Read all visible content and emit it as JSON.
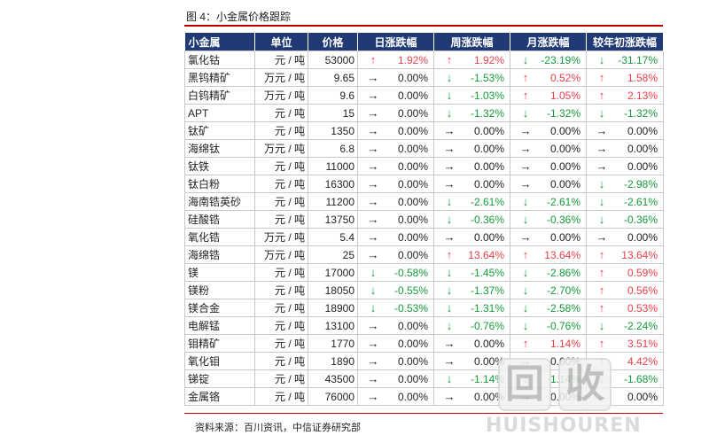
{
  "figure_title": "图 4：小金属价格跟踪",
  "columns": {
    "name": "小金属",
    "unit": "单位",
    "price": "价格",
    "day": "日涨跌幅",
    "week": "周涨跌幅",
    "month": "月涨跌幅",
    "ytd": "较年初涨跌幅"
  },
  "arrows": {
    "up": "↑",
    "down": "↓",
    "flat": "→"
  },
  "colors": {
    "header_bg": "#1f3a74",
    "up": "#e8414a",
    "down": "#159a3a",
    "rule": "#c00000"
  },
  "rows": [
    {
      "name": "氯化钴",
      "unit": "元 / 吨",
      "price": "53000",
      "day": {
        "dir": "up",
        "value": "1.92%"
      },
      "week": {
        "dir": "up",
        "value": "1.92%"
      },
      "month": {
        "dir": "down",
        "value": "-23.19%"
      },
      "ytd": {
        "dir": "down",
        "value": "-31.17%"
      }
    },
    {
      "name": "黑钨精矿",
      "unit": "万元 / 吨",
      "price": "9.65",
      "day": {
        "dir": "flat",
        "value": "0.00%"
      },
      "week": {
        "dir": "down",
        "value": "-1.53%"
      },
      "month": {
        "dir": "up",
        "value": "0.52%"
      },
      "ytd": {
        "dir": "up",
        "value": "1.58%"
      }
    },
    {
      "name": "白钨精矿",
      "unit": "万元 / 吨",
      "price": "9.6",
      "day": {
        "dir": "flat",
        "value": "0.00%"
      },
      "week": {
        "dir": "down",
        "value": "-1.03%"
      },
      "month": {
        "dir": "up",
        "value": "1.05%"
      },
      "ytd": {
        "dir": "up",
        "value": "2.13%"
      }
    },
    {
      "name": "APT",
      "unit": "元 / 吨",
      "price": "15",
      "day": {
        "dir": "flat",
        "value": "0.00%"
      },
      "week": {
        "dir": "down",
        "value": "-1.32%"
      },
      "month": {
        "dir": "down",
        "value": "-1.32%"
      },
      "ytd": {
        "dir": "down",
        "value": "-1.32%"
      }
    },
    {
      "name": "钛矿",
      "unit": "元 / 吨",
      "price": "1350",
      "day": {
        "dir": "flat",
        "value": "0.00%"
      },
      "week": {
        "dir": "flat",
        "value": "0.00%"
      },
      "month": {
        "dir": "flat",
        "value": "0.00%"
      },
      "ytd": {
        "dir": "flat",
        "value": "0.00%"
      }
    },
    {
      "name": "海绵钛",
      "unit": "万元 / 吨",
      "price": "6.8",
      "day": {
        "dir": "flat",
        "value": "0.00%"
      },
      "week": {
        "dir": "flat",
        "value": "0.00%"
      },
      "month": {
        "dir": "flat",
        "value": "0.00%"
      },
      "ytd": {
        "dir": "flat",
        "value": "0.00%"
      }
    },
    {
      "name": "钛铁",
      "unit": "元 / 吨",
      "price": "11000",
      "day": {
        "dir": "flat",
        "value": "0.00%"
      },
      "week": {
        "dir": "flat",
        "value": "0.00%"
      },
      "month": {
        "dir": "flat",
        "value": "0.00%"
      },
      "ytd": {
        "dir": "flat",
        "value": "0.00%"
      }
    },
    {
      "name": "钛白粉",
      "unit": "元 / 吨",
      "price": "16300",
      "day": {
        "dir": "flat",
        "value": "0.00%"
      },
      "week": {
        "dir": "flat",
        "value": "0.00%"
      },
      "month": {
        "dir": "flat",
        "value": "0.00%"
      },
      "ytd": {
        "dir": "down",
        "value": "-2.98%"
      }
    },
    {
      "name": "海南锆英砂",
      "unit": "元 / 吨",
      "price": "11200",
      "day": {
        "dir": "flat",
        "value": "0.00%"
      },
      "week": {
        "dir": "down",
        "value": "-2.61%"
      },
      "month": {
        "dir": "down",
        "value": "-2.61%"
      },
      "ytd": {
        "dir": "down",
        "value": "-2.61%"
      }
    },
    {
      "name": "硅酸锆",
      "unit": "元 / 吨",
      "price": "13750",
      "day": {
        "dir": "flat",
        "value": "0.00%"
      },
      "week": {
        "dir": "down",
        "value": "-0.36%"
      },
      "month": {
        "dir": "down",
        "value": "-0.36%"
      },
      "ytd": {
        "dir": "down",
        "value": "-0.36%"
      }
    },
    {
      "name": "氧化锆",
      "unit": "万元 / 吨",
      "price": "5.4",
      "day": {
        "dir": "flat",
        "value": "0.00%"
      },
      "week": {
        "dir": "flat",
        "value": "0.00%"
      },
      "month": {
        "dir": "flat",
        "value": "0.00%"
      },
      "ytd": {
        "dir": "flat",
        "value": "0.00%"
      }
    },
    {
      "name": "海绵锆",
      "unit": "万元 / 吨",
      "price": "25",
      "day": {
        "dir": "flat",
        "value": "0.00%"
      },
      "week": {
        "dir": "up",
        "value": "13.64%"
      },
      "month": {
        "dir": "up",
        "value": "13.64%"
      },
      "ytd": {
        "dir": "up",
        "value": "13.64%"
      }
    },
    {
      "name": "镁",
      "unit": "元 / 吨",
      "price": "17000",
      "day": {
        "dir": "down",
        "value": "-0.58%"
      },
      "week": {
        "dir": "down",
        "value": "-1.45%"
      },
      "month": {
        "dir": "down",
        "value": "-2.86%"
      },
      "ytd": {
        "dir": "up",
        "value": "0.59%"
      }
    },
    {
      "name": "镁粉",
      "unit": "元 / 吨",
      "price": "18050",
      "day": {
        "dir": "down",
        "value": "-0.55%"
      },
      "week": {
        "dir": "down",
        "value": "-1.37%"
      },
      "month": {
        "dir": "down",
        "value": "-2.70%"
      },
      "ytd": {
        "dir": "up",
        "value": "0.56%"
      }
    },
    {
      "name": "镁合金",
      "unit": "元 / 吨",
      "price": "18900",
      "day": {
        "dir": "down",
        "value": "-0.53%"
      },
      "week": {
        "dir": "down",
        "value": "-1.31%"
      },
      "month": {
        "dir": "down",
        "value": "-2.58%"
      },
      "ytd": {
        "dir": "up",
        "value": "0.53%"
      }
    },
    {
      "name": "电解锰",
      "unit": "元 / 吨",
      "price": "13100",
      "day": {
        "dir": "flat",
        "value": "0.00%"
      },
      "week": {
        "dir": "down",
        "value": "-0.76%"
      },
      "month": {
        "dir": "down",
        "value": "-0.76%"
      },
      "ytd": {
        "dir": "down",
        "value": "-2.24%"
      }
    },
    {
      "name": "钼精矿",
      "unit": "元 / 吨",
      "price": "1770",
      "day": {
        "dir": "flat",
        "value": "0.00%"
      },
      "week": {
        "dir": "flat",
        "value": "0.00%"
      },
      "month": {
        "dir": "up",
        "value": "1.14%"
      },
      "ytd": {
        "dir": "up",
        "value": "3.51%"
      }
    },
    {
      "name": "氧化钼",
      "unit": "元 / 吨",
      "price": "1890",
      "day": {
        "dir": "flat",
        "value": "0.00%"
      },
      "week": {
        "dir": "flat",
        "value": "0.00%"
      },
      "month": {
        "dir": "flat",
        "value": "0.00%"
      },
      "ytd": {
        "dir": "up",
        "value": "4.42%"
      }
    },
    {
      "name": "锑锭",
      "unit": "元 / 吨",
      "price": "43500",
      "day": {
        "dir": "flat",
        "value": "0.00%"
      },
      "week": {
        "dir": "down",
        "value": "-1.14%"
      },
      "month": {
        "dir": "down",
        "value": "-1.14%"
      },
      "ytd": {
        "dir": "down",
        "value": "-1.68%"
      }
    },
    {
      "name": "金属铬",
      "unit": "元 / 吨",
      "price": "76000",
      "day": {
        "dir": "flat",
        "value": "0.00%"
      },
      "week": {
        "dir": "flat",
        "value": "0.00%"
      },
      "month": {
        "dir": "flat",
        "value": "0.00%"
      },
      "ytd": {
        "dir": "flat",
        "value": "0.00%"
      }
    }
  ],
  "source": "资料来源：百川资讯，中信证券研究部",
  "watermark": {
    "glyph_left": "回",
    "glyph_right": "收",
    "text": "HUISHOUREN"
  }
}
